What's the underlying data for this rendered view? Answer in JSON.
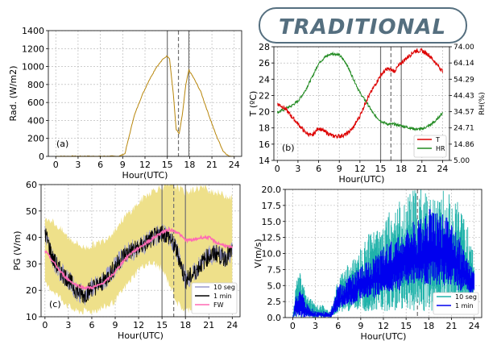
{
  "banner": {
    "text": "TRADITIONAL",
    "color": "#556f7f"
  },
  "chart_data": [
    {
      "id": "a",
      "type": "line",
      "panel_label": "(a)",
      "ylabel": "Rad. (W/m2)",
      "xlabel": "Hour(UTC)",
      "xlim": [
        -1,
        25
      ],
      "ylim": [
        0,
        1400
      ],
      "xticks": [
        0,
        3,
        6,
        9,
        12,
        15,
        18,
        21,
        24
      ],
      "yticks": [
        0,
        200,
        400,
        600,
        800,
        1000,
        1200,
        1400
      ],
      "line_color": "#b8860b",
      "series": [
        {
          "x": [
            0,
            3,
            6,
            8.5,
            9.3,
            9.8,
            10.5,
            11.5,
            12.5,
            13.5,
            14.5,
            15.0,
            15.3,
            15.8,
            16.2,
            16.6,
            17.0,
            17.5,
            17.9,
            18.5,
            19.5,
            20.5,
            21.5,
            22.5,
            23.3,
            24
          ],
          "y": [
            0,
            0,
            0,
            0,
            30,
            200,
            440,
            660,
            840,
            990,
            1090,
            1120,
            1090,
            700,
            300,
            250,
            450,
            800,
            960,
            880,
            720,
            480,
            250,
            60,
            0,
            0
          ]
        }
      ],
      "vlines_solid": [
        15,
        17.9
      ],
      "vlines_dashed": [
        16.5
      ]
    },
    {
      "id": "b",
      "type": "line",
      "panel_label": "(b)",
      "ylabel_left": "T (ºC)",
      "ylabel_right": "RH(%)",
      "xlabel": "Hour(UTC)",
      "xlim": [
        -0.5,
        25
      ],
      "ylim_left": [
        14,
        28
      ],
      "ylim_right": [
        5.0,
        74.0
      ],
      "xticks": [
        0,
        3,
        6,
        9,
        12,
        15,
        18,
        21,
        24
      ],
      "yticks_left": [
        14,
        16,
        18,
        20,
        22,
        24,
        26,
        28
      ],
      "yticks_right": [
        "5.00",
        "14.86",
        "24.71",
        "34.57",
        "44.43",
        "54.29",
        "64.14",
        "74.00"
      ],
      "series": [
        {
          "name": "T",
          "color": "#dd0000",
          "x": [
            0,
            1,
            2,
            3,
            4,
            5,
            6,
            7,
            8,
            9,
            10,
            11,
            12,
            13,
            14,
            15,
            16,
            17,
            18,
            19,
            20,
            21,
            22,
            23,
            24
          ],
          "y": [
            21,
            20.5,
            19.5,
            18.5,
            17.5,
            17,
            18,
            17.5,
            17,
            17,
            17.2,
            18,
            19.5,
            21.5,
            23,
            24.5,
            25.3,
            25,
            26,
            26.8,
            27.5,
            27.5,
            27,
            26,
            25
          ]
        },
        {
          "name": "HR",
          "color": "#228b22",
          "x": [
            0,
            1,
            2,
            3,
            4,
            5,
            6,
            7,
            8,
            9,
            10,
            11,
            12,
            13,
            14,
            15,
            16,
            17,
            18,
            19,
            20,
            21,
            22,
            23,
            24
          ],
          "y": [
            34,
            36,
            38,
            41,
            47,
            55,
            64,
            68,
            70,
            69,
            64,
            55,
            46,
            40,
            33,
            29,
            27,
            27,
            26,
            25,
            24,
            24,
            26,
            29,
            34
          ]
        }
      ],
      "vlines_solid": [
        15,
        18
      ],
      "vlines_dashed": [
        16.5
      ],
      "legend": {
        "placement": "lower-right",
        "entries": [
          "T",
          "HR"
        ]
      }
    },
    {
      "id": "c",
      "type": "line",
      "panel_label": "(c)",
      "ylabel": "PG (V/m)",
      "xlabel": "Hour(UTC)",
      "xlim": [
        -0.5,
        25
      ],
      "ylim": [
        10,
        60
      ],
      "xticks": [
        0,
        3,
        6,
        9,
        12,
        15,
        18,
        21,
        24
      ],
      "yticks": [
        10,
        20,
        30,
        40,
        50,
        60
      ],
      "band_color": "#eee08a",
      "band": {
        "x": [
          0,
          1,
          2,
          3,
          4,
          5,
          6,
          7,
          8,
          9,
          10,
          11,
          12,
          13,
          14,
          15,
          16,
          17,
          18,
          19,
          20,
          21,
          22,
          23,
          24
        ],
        "lower": [
          22,
          20,
          17,
          14,
          12,
          12,
          12,
          13,
          14,
          16,
          20,
          24,
          28,
          30,
          30,
          28,
          22,
          15,
          12,
          14,
          16,
          17,
          18,
          18,
          18
        ],
        "upper": [
          48,
          46,
          43,
          40,
          38,
          36,
          37,
          38,
          40,
          43,
          47,
          50,
          53,
          56,
          58,
          59,
          60,
          59,
          57,
          58,
          59,
          58,
          57,
          56,
          55
        ]
      },
      "series": [
        {
          "name": "10 seg",
          "color": "#9999cc",
          "x": [
            0,
            1,
            2,
            3,
            4,
            5,
            6,
            7,
            8,
            9,
            10,
            11,
            12,
            13,
            14,
            15,
            16,
            17,
            18,
            19,
            20,
            21,
            22,
            23,
            24
          ],
          "y": [
            42,
            32,
            27,
            24,
            20,
            18,
            21,
            22,
            25,
            29,
            33,
            35,
            36,
            38,
            40,
            42,
            40,
            34,
            24,
            26,
            30,
            33,
            34,
            32,
            35
          ]
        },
        {
          "name": "1 min",
          "color": "#000000",
          "x": [
            0,
            1,
            2,
            3,
            4,
            5,
            6,
            7,
            8,
            9,
            10,
            11,
            12,
            13,
            14,
            15,
            16,
            17,
            18,
            19,
            20,
            21,
            22,
            23,
            24
          ],
          "y": [
            42,
            32,
            27,
            24,
            20,
            18,
            21,
            22,
            25,
            29,
            33,
            35,
            36,
            38,
            40,
            42,
            40,
            34,
            24,
            26,
            30,
            33,
            34,
            32,
            35
          ]
        },
        {
          "name": "FW",
          "color": "#ff69b4",
          "x": [
            0,
            1,
            2,
            3,
            4,
            5,
            6,
            7,
            8,
            9,
            10,
            11,
            12,
            13,
            14,
            15,
            16,
            17,
            18,
            19,
            20,
            21,
            22,
            23,
            24
          ],
          "y": [
            35,
            31,
            27,
            24,
            22,
            21,
            21,
            22,
            24,
            27,
            31,
            34,
            36,
            38,
            40,
            42,
            43,
            42,
            39,
            39,
            40,
            40,
            38,
            37,
            36
          ]
        }
      ],
      "vlines_solid": [
        15,
        18
      ],
      "vlines_dashed": [
        16.5
      ],
      "legend": {
        "placement": "lower-right",
        "entries": [
          "10 seg",
          "1 min",
          "FW"
        ]
      }
    },
    {
      "id": "d",
      "type": "line",
      "panel_label": "",
      "ylabel": "V(m/s)",
      "xlabel": "Hour(UTC)",
      "xlim": [
        -1,
        25
      ],
      "ylim": [
        0,
        20
      ],
      "xticks": [
        0,
        3,
        6,
        9,
        12,
        15,
        18,
        21,
        24
      ],
      "yticks": [
        "0.0",
        "2.5",
        "5.0",
        "7.5",
        "10.0",
        "12.5",
        "15.0",
        "17.5",
        "20.0"
      ],
      "series": [
        {
          "name": "10 seg",
          "color": "#20b2aa",
          "x": [
            0,
            0.5,
            1,
            1.5,
            2,
            3,
            4,
            5,
            6,
            7,
            8,
            9,
            10,
            11,
            12,
            13,
            14,
            15,
            16,
            17,
            18,
            19,
            20,
            21,
            22,
            23,
            24
          ],
          "upper": [
            0,
            6,
            7,
            5,
            4,
            2,
            2,
            1,
            6,
            8,
            9,
            11,
            13,
            14,
            15,
            17,
            18,
            19,
            20,
            20,
            20,
            20,
            20,
            19,
            18,
            15,
            10
          ],
          "lower": [
            0,
            0,
            0,
            0,
            0,
            0,
            0,
            0,
            0.5,
            1,
            1,
            1,
            1,
            1,
            1,
            1,
            1,
            1,
            1,
            1,
            1,
            1,
            1,
            1,
            1,
            2,
            3
          ]
        },
        {
          "name": "1 min",
          "color": "#0000ee",
          "x": [
            0,
            0.5,
            1,
            1.5,
            2,
            3,
            4,
            5,
            6,
            7,
            8,
            9,
            10,
            11,
            12,
            13,
            14,
            15,
            16,
            17,
            18,
            19,
            20,
            21,
            22,
            23,
            24
          ],
          "upper": [
            0,
            4,
            5,
            3,
            2,
            1,
            1,
            1,
            5,
            6,
            7,
            8,
            9,
            10,
            11,
            12,
            13,
            14,
            15,
            16,
            17,
            17,
            16,
            15,
            13,
            10,
            7
          ],
          "lower": [
            0,
            0,
            0,
            0,
            0,
            0,
            0,
            0,
            1,
            2,
            2,
            3,
            3,
            3,
            4,
            4,
            4,
            5,
            5,
            5,
            5,
            5,
            5,
            5,
            4,
            4,
            3
          ]
        }
      ],
      "vlines_dashed": [
        16.5
      ],
      "legend": {
        "placement": "lower-right",
        "entries": [
          "10 seg",
          "1 min"
        ]
      }
    }
  ]
}
